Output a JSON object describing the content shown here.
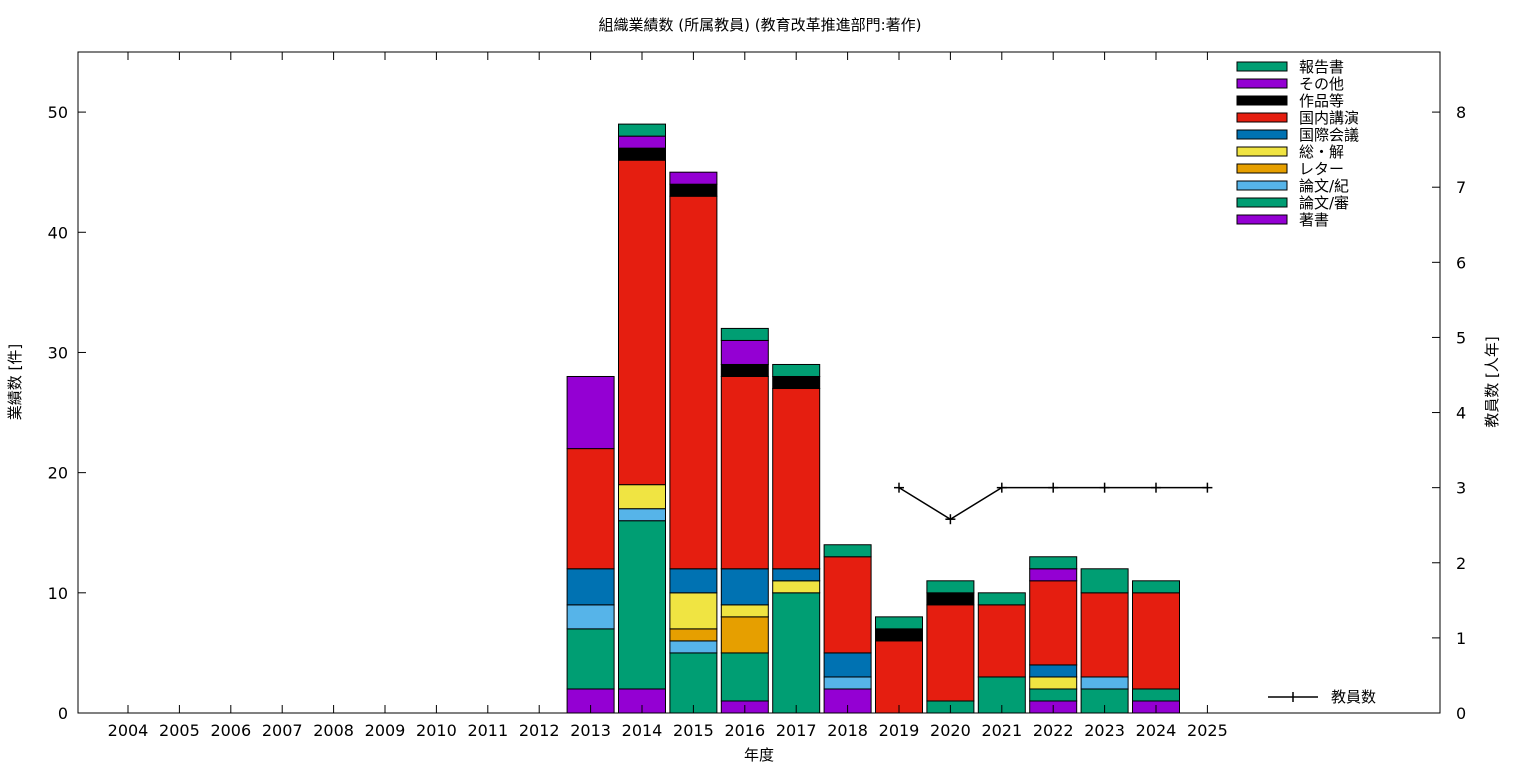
{
  "chart_data": {
    "type": "bar",
    "stacked": true,
    "title": "組織業績数 (所属教員) (教育改革推進部門:著作)",
    "xlabel": "年度",
    "ylabel": "業績数 [件]",
    "y2label": "教員数 [人年]",
    "ylim": [
      0,
      55
    ],
    "y2lim": [
      0,
      8.8
    ],
    "yticks": [
      0,
      10,
      20,
      30,
      40,
      50
    ],
    "y2ticks": [
      0,
      1,
      2,
      3,
      4,
      5,
      6,
      7,
      8
    ],
    "grid": false,
    "legend_position": "top-right",
    "categories": [
      "2004",
      "2005",
      "2006",
      "2007",
      "2008",
      "2009",
      "2010",
      "2011",
      "2012",
      "2013",
      "2014",
      "2015",
      "2016",
      "2017",
      "2018",
      "2019",
      "2020",
      "2021",
      "2022",
      "2023",
      "2024",
      "2025"
    ],
    "series": [
      {
        "name": "著書",
        "color": "#9400d3",
        "values": [
          0,
          0,
          0,
          0,
          0,
          0,
          0,
          0,
          0,
          2,
          2,
          0,
          1,
          0,
          2,
          0,
          0,
          0,
          1,
          0,
          1,
          0
        ]
      },
      {
        "name": "論文/審",
        "color": "#009e73",
        "values": [
          0,
          0,
          0,
          0,
          0,
          0,
          0,
          0,
          0,
          5,
          14,
          5,
          4,
          10,
          0,
          0,
          1,
          3,
          1,
          2,
          1,
          0
        ]
      },
      {
        "name": "論文/紀",
        "color": "#56b4e9",
        "values": [
          0,
          0,
          0,
          0,
          0,
          0,
          0,
          0,
          0,
          2,
          1,
          1,
          0,
          0,
          1,
          0,
          0,
          0,
          0,
          1,
          0,
          0
        ]
      },
      {
        "name": "レター",
        "color": "#e69f00",
        "values": [
          0,
          0,
          0,
          0,
          0,
          0,
          0,
          0,
          0,
          0,
          0,
          1,
          3,
          0,
          0,
          0,
          0,
          0,
          0,
          0,
          0,
          0
        ]
      },
      {
        "name": "総・解",
        "color": "#f0e442",
        "values": [
          0,
          0,
          0,
          0,
          0,
          0,
          0,
          0,
          0,
          0,
          2,
          3,
          1,
          1,
          0,
          0,
          0,
          0,
          1,
          0,
          0,
          0
        ]
      },
      {
        "name": "国際会議",
        "color": "#0072b2",
        "values": [
          0,
          0,
          0,
          0,
          0,
          0,
          0,
          0,
          0,
          3,
          0,
          2,
          3,
          1,
          2,
          0,
          0,
          0,
          1,
          0,
          0,
          0
        ]
      },
      {
        "name": "国内講演",
        "color": "#e51e10",
        "values": [
          0,
          0,
          0,
          0,
          0,
          0,
          0,
          0,
          0,
          10,
          27,
          31,
          16,
          15,
          8,
          6,
          8,
          6,
          7,
          7,
          8,
          0
        ]
      },
      {
        "name": "作品等",
        "color": "#000000",
        "values": [
          0,
          0,
          0,
          0,
          0,
          0,
          0,
          0,
          0,
          0,
          1,
          1,
          1,
          1,
          0,
          1,
          1,
          0,
          0,
          0,
          0,
          0
        ]
      },
      {
        "name": "その他",
        "color": "#9400d3",
        "values": [
          0,
          0,
          0,
          0,
          0,
          0,
          0,
          0,
          0,
          6,
          1,
          1,
          2,
          0,
          0,
          0,
          0,
          0,
          1,
          0,
          0,
          0
        ]
      },
      {
        "name": "報告書",
        "color": "#009e73",
        "values": [
          0,
          0,
          0,
          0,
          0,
          0,
          0,
          0,
          0,
          0,
          1,
          0,
          1,
          1,
          1,
          1,
          1,
          1,
          1,
          2,
          1,
          0
        ]
      }
    ],
    "line_series": {
      "name": "教員数",
      "color": "#000000",
      "axis": "y2",
      "x": [
        "2019",
        "2020",
        "2021",
        "2022",
        "2023",
        "2024",
        "2025"
      ],
      "values": [
        3,
        2.58,
        3,
        3,
        3,
        3,
        3
      ]
    }
  }
}
